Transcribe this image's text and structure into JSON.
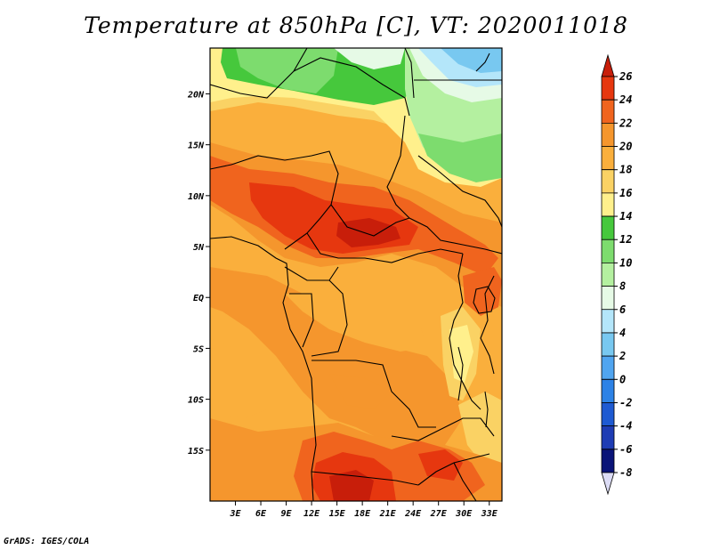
{
  "title": "Temperature at 850hPa [C], VT: 2020011018",
  "footer": "GrADS: IGES/COLA",
  "map": {
    "type": "filled-contour-map",
    "variable": "Temperature at 850hPa",
    "units": "C",
    "valid_time": "2020011018",
    "lat_range": [
      -20,
      24.5
    ],
    "lon_range": [
      0,
      34.5
    ],
    "lat_ticks": [
      {
        "value": 20,
        "label": "20N"
      },
      {
        "value": 15,
        "label": "15N"
      },
      {
        "value": 10,
        "label": "10N"
      },
      {
        "value": 5,
        "label": "5N"
      },
      {
        "value": 0,
        "label": "EQ"
      },
      {
        "value": -5,
        "label": "5S"
      },
      {
        "value": -10,
        "label": "10S"
      },
      {
        "value": -15,
        "label": "15S"
      }
    ],
    "lon_ticks": [
      {
        "value": 3,
        "label": "3E"
      },
      {
        "value": 6,
        "label": "6E"
      },
      {
        "value": 9,
        "label": "9E"
      },
      {
        "value": 12,
        "label": "12E"
      },
      {
        "value": 15,
        "label": "15E"
      },
      {
        "value": 18,
        "label": "18E"
      },
      {
        "value": 21,
        "label": "21E"
      },
      {
        "value": 24,
        "label": "24E"
      },
      {
        "value": 27,
        "label": "27E"
      },
      {
        "value": 30,
        "label": "30E"
      },
      {
        "value": 33,
        "label": "33E"
      }
    ]
  },
  "colorbar": {
    "labels": [
      "26",
      "24",
      "22",
      "20",
      "18",
      "16",
      "14",
      "12",
      "10",
      "8",
      "6",
      "4",
      "2",
      "0",
      "-2",
      "-4",
      "-6",
      "-8"
    ],
    "colors": [
      "#c81e0a",
      "#e6370f",
      "#f0641e",
      "#f5962d",
      "#faaf3c",
      "#fad264",
      "#fff08c",
      "#46c83c",
      "#7ddc6e",
      "#b4f0a0",
      "#e6fae6",
      "#b4e6fa",
      "#78c8f0",
      "#50a5f0",
      "#2d82e6",
      "#1e5ad2",
      "#1e3cb4",
      "#0a1478",
      "#dcdcf5"
    ]
  },
  "colors": {
    "c_lt2": "#78c8f0",
    "c_2_4": "#78c8f0",
    "c_4_6": "#b4e6fa",
    "c_6_8": "#e6fae6",
    "c_8_10": "#b4f0a0",
    "c_10_12": "#7ddc6e",
    "c_12_14": "#46c83c",
    "c_14_16": "#fff08c",
    "c_16_18": "#fad264",
    "c_18_20": "#faaf3c",
    "c_20_22": "#f5962d",
    "c_22_24": "#f0641e",
    "c_24_26": "#e6370f",
    "c_gt26": "#c81e0a"
  }
}
